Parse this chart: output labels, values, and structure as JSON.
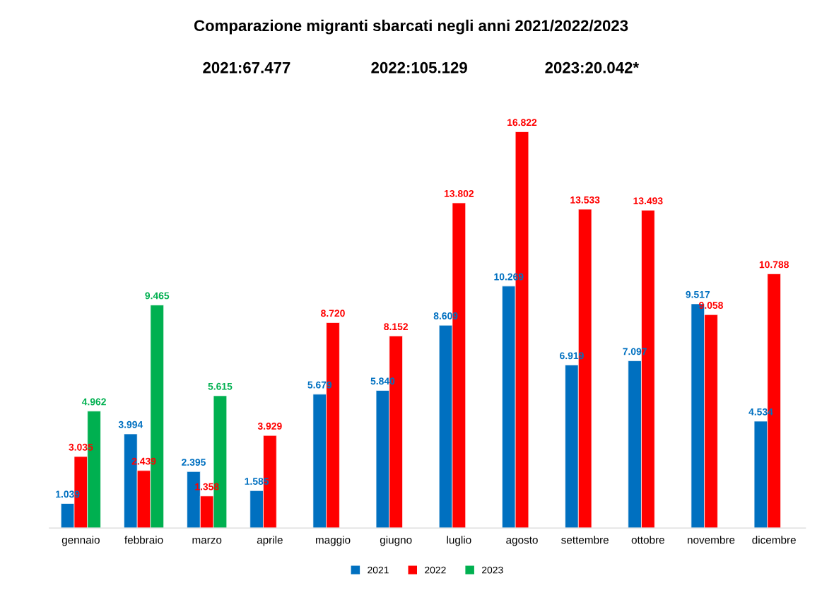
{
  "chart_data": {
    "type": "bar",
    "title": "Comparazione migranti sbarcati negli anni 2021/2022/2023",
    "annotations": [
      "2021:67.477",
      "2022:105.129",
      "2023:20.042*"
    ],
    "categories": [
      "gennaio",
      "febbraio",
      "marzo",
      "aprile",
      "maggio",
      "giugno",
      "luglio",
      "agosto",
      "settembre",
      "ottobre",
      "novembre",
      "dicembre"
    ],
    "series": [
      {
        "name": "2021",
        "color": "#0070c0",
        "values": [
          1039,
          3994,
          2395,
          1585,
          5679,
          5840,
          8609,
          10269,
          6919,
          7097,
          9517,
          4534
        ],
        "value_labels": [
          "1.039",
          "3.994",
          "2.395",
          "1.585",
          "5.679",
          "5.840",
          "8.609",
          "10.269",
          "6.919",
          "7.097",
          "9.517",
          "4.534"
        ]
      },
      {
        "name": "2022",
        "color": "#ff0000",
        "values": [
          3035,
          2439,
          1358,
          3929,
          8720,
          8152,
          13802,
          16822,
          13533,
          13493,
          9058,
          10788
        ],
        "value_labels": [
          "3.035",
          "2.439",
          "1.358",
          "3.929",
          "8.720",
          "8.152",
          "13.802",
          "16.822",
          "13.533",
          "13.493",
          "9.058",
          "10.788"
        ]
      },
      {
        "name": "2023",
        "color": "#00b050",
        "values": [
          4962,
          9465,
          5615,
          null,
          null,
          null,
          null,
          null,
          null,
          null,
          null,
          null
        ],
        "value_labels": [
          "4.962",
          "9.465",
          "5.615",
          null,
          null,
          null,
          null,
          null,
          null,
          null,
          null,
          null
        ]
      }
    ],
    "legend": "bottom",
    "grid": false
  }
}
